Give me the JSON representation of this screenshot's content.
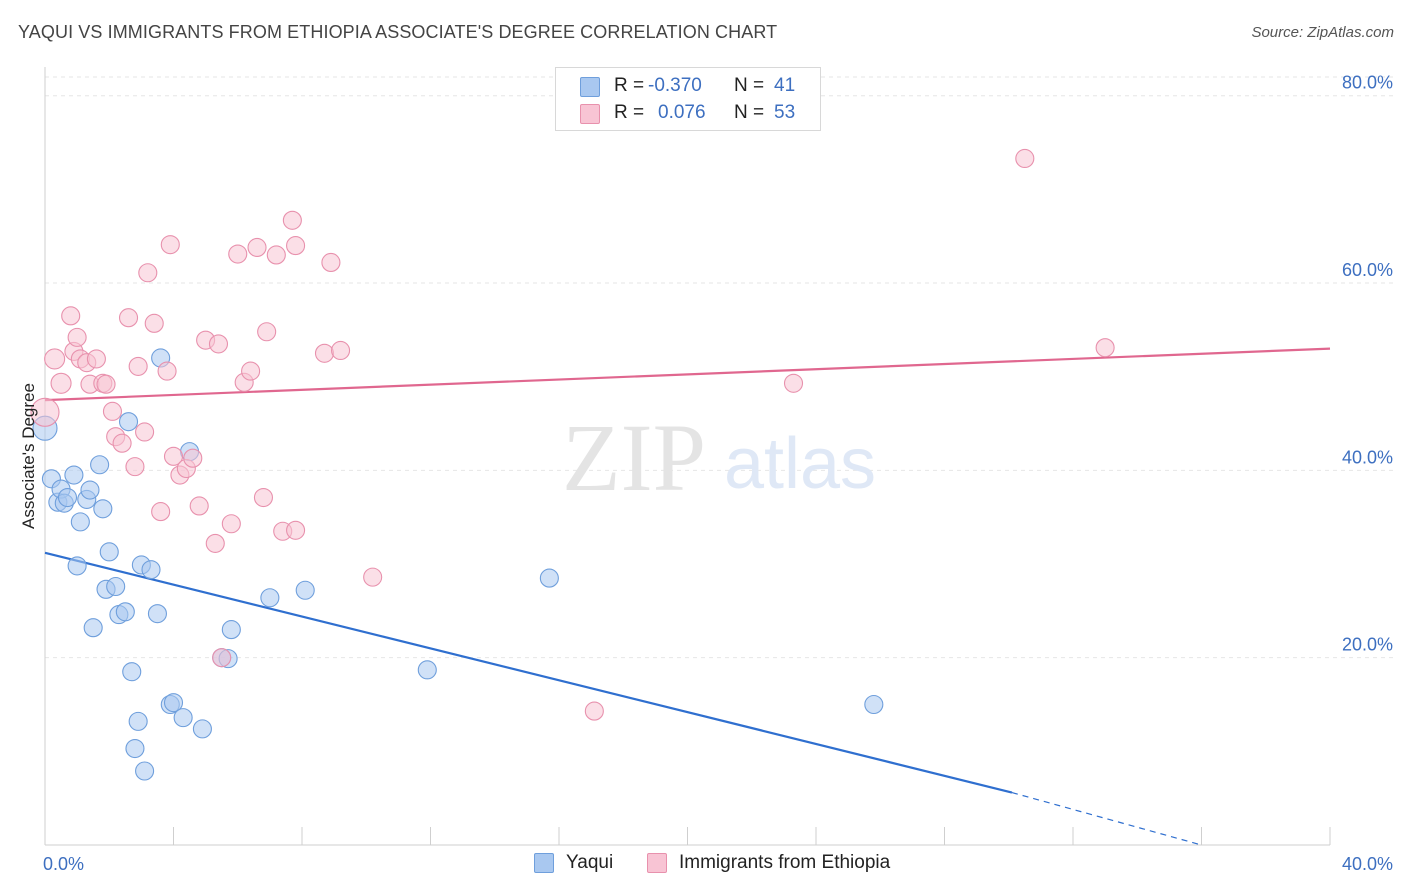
{
  "header": {
    "title": "YAQUI VS IMMIGRANTS FROM ETHIOPIA ASSOCIATE'S DEGREE CORRELATION CHART",
    "source": "Source: ZipAtlas.com"
  },
  "watermark": {
    "zip": "ZIP",
    "atlas": "atlas"
  },
  "legend": {
    "rows": [
      {
        "r_label": "R =",
        "r_value": "-0.370",
        "n_label": "N =",
        "n_value": "41",
        "color": "#a9c8f0",
        "border": "#6f9fdc"
      },
      {
        "r_label": "R =",
        "r_value": "0.076",
        "n_label": "N =",
        "n_value": "53",
        "color": "#f8c4d4",
        "border": "#e891ad"
      }
    ]
  },
  "bottom_legend": {
    "yaqui": "Yaqui",
    "ethiopia": "Immigrants from Ethiopia"
  },
  "chart_data": {
    "type": "scatter",
    "xlabel": "",
    "ylabel": "Associate's Degree",
    "xlim": [
      0,
      40
    ],
    "ylim": [
      0,
      82
    ],
    "x_tick_labels": [
      "0.0%",
      "40.0%"
    ],
    "y_ticks": [
      20,
      40,
      60,
      80
    ],
    "y_tick_labels": [
      "20.0%",
      "40.0%",
      "60.0%",
      "80.0%"
    ],
    "grid": true,
    "series": [
      {
        "name": "Yaqui",
        "color": "#6f9fdc",
        "fill": "#a9c8f0",
        "line_color": "#2f6fcf",
        "trend": {
          "x": [
            0,
            30.1
          ],
          "y": [
            31.2,
            5.6
          ],
          "dash_to": [
            36,
            0
          ]
        },
        "points": [
          [
            0.0,
            44.5,
            12
          ],
          [
            0.2,
            39.1,
            9
          ],
          [
            0.4,
            36.6,
            9
          ],
          [
            0.5,
            38.0,
            9
          ],
          [
            0.6,
            36.5,
            9
          ],
          [
            0.7,
            37.1,
            9
          ],
          [
            0.9,
            39.5,
            9
          ],
          [
            1.0,
            29.8,
            9
          ],
          [
            1.1,
            34.5,
            9
          ],
          [
            1.3,
            36.9,
            9
          ],
          [
            1.4,
            37.9,
            9
          ],
          [
            1.5,
            23.2,
            9
          ],
          [
            1.7,
            40.6,
            9
          ],
          [
            1.8,
            35.9,
            9
          ],
          [
            1.9,
            27.3,
            9
          ],
          [
            2.0,
            31.3,
            9
          ],
          [
            2.2,
            27.6,
            9
          ],
          [
            2.3,
            24.6,
            9
          ],
          [
            2.5,
            24.9,
            9
          ],
          [
            2.6,
            45.2,
            9
          ],
          [
            2.7,
            18.5,
            9
          ],
          [
            2.8,
            10.3,
            9
          ],
          [
            2.9,
            13.2,
            9
          ],
          [
            3.0,
            29.9,
            9
          ],
          [
            3.1,
            7.9,
            9
          ],
          [
            3.3,
            29.4,
            9
          ],
          [
            3.5,
            24.7,
            9
          ],
          [
            3.6,
            52.0,
            9
          ],
          [
            3.9,
            15.0,
            9
          ],
          [
            4.0,
            15.2,
            9
          ],
          [
            4.3,
            13.6,
            9
          ],
          [
            4.5,
            42.0,
            9
          ],
          [
            4.9,
            12.4,
            9
          ],
          [
            5.5,
            20.0,
            9
          ],
          [
            5.7,
            19.9,
            9
          ],
          [
            5.8,
            23.0,
            9
          ],
          [
            7.0,
            26.4,
            9
          ],
          [
            8.1,
            27.2,
            9
          ],
          [
            11.9,
            18.7,
            9
          ],
          [
            15.7,
            28.5,
            9
          ],
          [
            25.8,
            15.0,
            9
          ]
        ]
      },
      {
        "name": "Immigrants from Ethiopia",
        "color": "#e891ad",
        "fill": "#f8c4d4",
        "line_color": "#e0678f",
        "trend": {
          "x": [
            0,
            40
          ],
          "y": [
            47.5,
            53.0
          ]
        },
        "points": [
          [
            0.0,
            46.2,
            14
          ],
          [
            0.3,
            51.9,
            10
          ],
          [
            0.5,
            49.3,
            10
          ],
          [
            0.8,
            56.5,
            9
          ],
          [
            0.9,
            52.7,
            9
          ],
          [
            1.0,
            54.2,
            9
          ],
          [
            1.1,
            51.9,
            9
          ],
          [
            1.3,
            51.5,
            9
          ],
          [
            1.4,
            49.2,
            9
          ],
          [
            1.6,
            51.9,
            9
          ],
          [
            1.8,
            49.3,
            9
          ],
          [
            1.9,
            49.2,
            9
          ],
          [
            2.1,
            46.3,
            9
          ],
          [
            2.2,
            43.6,
            9
          ],
          [
            2.4,
            42.9,
            9
          ],
          [
            2.6,
            56.3,
            9
          ],
          [
            2.8,
            40.4,
            9
          ],
          [
            2.9,
            51.1,
            9
          ],
          [
            3.1,
            44.1,
            9
          ],
          [
            3.2,
            61.1,
            9
          ],
          [
            3.4,
            55.7,
            9
          ],
          [
            3.6,
            35.6,
            9
          ],
          [
            3.8,
            50.6,
            9
          ],
          [
            3.9,
            64.1,
            9
          ],
          [
            4.0,
            41.5,
            9
          ],
          [
            4.2,
            39.5,
            9
          ],
          [
            4.4,
            40.2,
            9
          ],
          [
            4.6,
            41.3,
            9
          ],
          [
            4.8,
            36.2,
            9
          ],
          [
            5.0,
            53.9,
            9
          ],
          [
            5.3,
            32.2,
            9
          ],
          [
            5.4,
            53.5,
            9
          ],
          [
            5.5,
            20.0,
            9
          ],
          [
            5.8,
            34.3,
            9
          ],
          [
            6.0,
            63.1,
            9
          ],
          [
            6.2,
            49.4,
            9
          ],
          [
            6.4,
            50.6,
            9
          ],
          [
            6.6,
            63.8,
            9
          ],
          [
            6.8,
            37.1,
            9
          ],
          [
            6.9,
            54.8,
            9
          ],
          [
            7.2,
            63.0,
            9
          ],
          [
            7.4,
            33.5,
            9
          ],
          [
            7.7,
            66.7,
            9
          ],
          [
            7.8,
            33.6,
            9
          ],
          [
            7.8,
            64.0,
            9
          ],
          [
            8.7,
            52.5,
            9
          ],
          [
            8.9,
            62.2,
            9
          ],
          [
            9.2,
            52.8,
            9
          ],
          [
            10.2,
            28.6,
            9
          ],
          [
            17.1,
            14.3,
            9
          ],
          [
            23.3,
            49.3,
            9
          ],
          [
            30.5,
            73.3,
            9
          ],
          [
            33.0,
            53.1,
            9
          ]
        ]
      }
    ]
  }
}
